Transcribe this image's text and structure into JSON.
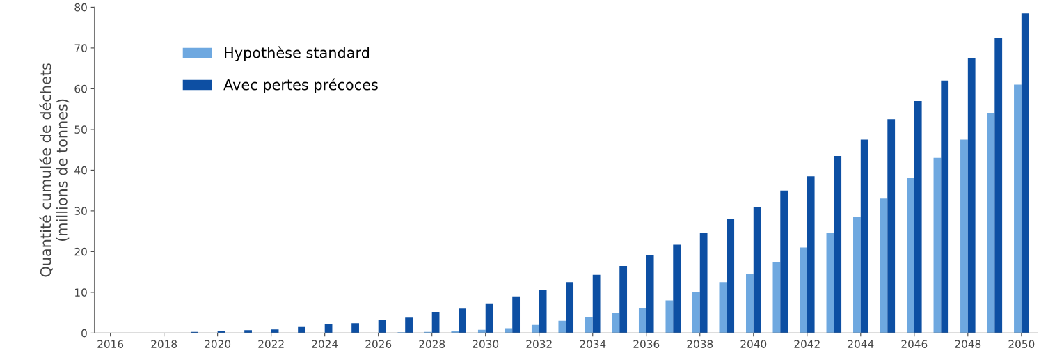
{
  "chart_data": {
    "type": "bar",
    "ylabel": "Quantité cumulée de déchets\n(millions de tonnes)",
    "categories": [
      "2016",
      null,
      "2018",
      null,
      "2020",
      null,
      "2022",
      null,
      "2024",
      null,
      "2026",
      null,
      "2028",
      null,
      "2030",
      null,
      "2032",
      null,
      "2034",
      null,
      "2036",
      null,
      "2038",
      null,
      "2040",
      null,
      "2042",
      null,
      "2044",
      null,
      "2046",
      null,
      "2048",
      null,
      "2050"
    ],
    "series": [
      {
        "name": "Hypothèse standard",
        "color": "#6ea8e0",
        "values": [
          0,
          0,
          0,
          0,
          0,
          0,
          0,
          0,
          0,
          0,
          0,
          0.2,
          0.3,
          0.5,
          0.8,
          1.2,
          2,
          3,
          4,
          5,
          6.2,
          8,
          10,
          12.5,
          14.5,
          17.5,
          21,
          24.5,
          28.5,
          33,
          38,
          43,
          47.5,
          54,
          61
        ]
      },
      {
        "name": "Avec pertes précoces",
        "color": "#0d4fa3",
        "values": [
          0,
          0,
          0,
          0.3,
          0.4,
          0.7,
          0.9,
          1.5,
          2.2,
          2.4,
          3.2,
          3.8,
          5.2,
          6,
          7.3,
          9,
          10.6,
          12.5,
          14.3,
          16.5,
          19.2,
          21.7,
          24.5,
          28,
          31,
          35,
          38.5,
          43.5,
          47.5,
          52.5,
          57,
          62,
          67.5,
          72.5,
          78.5
        ]
      }
    ],
    "ylim": [
      0,
      80
    ],
    "yticks": [
      0,
      10,
      20,
      30,
      40,
      50,
      60,
      70,
      80
    ],
    "grid": false,
    "legend": "top left"
  }
}
